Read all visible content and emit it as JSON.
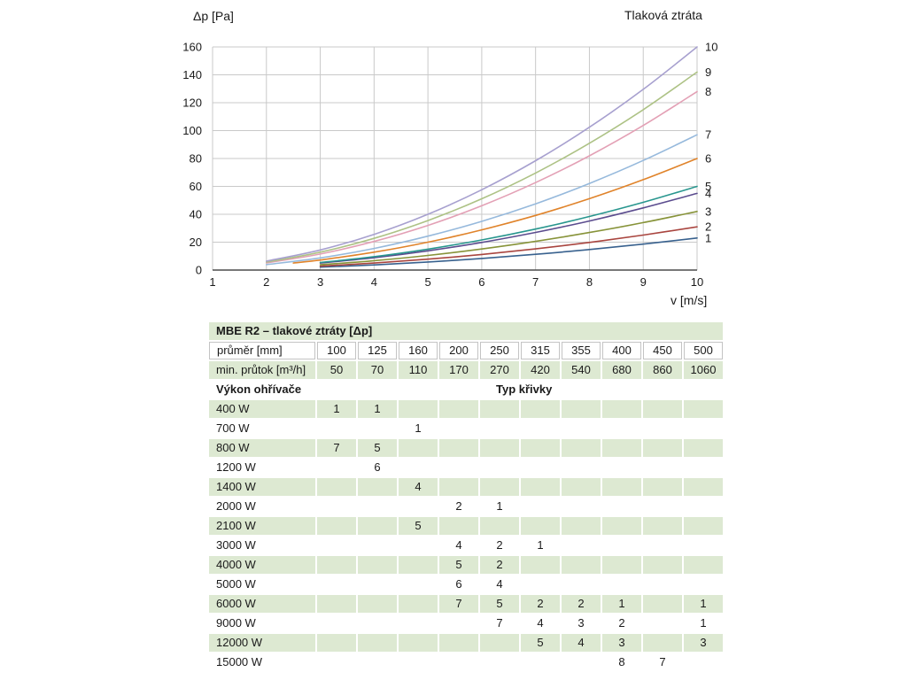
{
  "chart_data": {
    "type": "line",
    "title": "Tlaková ztráta",
    "xlabel": "v [m/s]",
    "ylabel": "Δp [Pa]",
    "xlim": [
      1,
      10
    ],
    "ylim": [
      0,
      160
    ],
    "xticks": [
      1,
      2,
      3,
      4,
      5,
      6,
      7,
      8,
      9,
      10
    ],
    "yticks": [
      0,
      20,
      40,
      60,
      80,
      100,
      120,
      140,
      160
    ],
    "grid": true,
    "legend_position": "right-end-labels",
    "series": [
      {
        "name": "1",
        "color": "#38618e",
        "x": [
          3,
          4,
          5,
          6,
          7,
          8,
          9,
          10
        ],
        "y": [
          2.1,
          3.7,
          5.8,
          8.3,
          11.3,
          14.7,
          18.6,
          23
        ]
      },
      {
        "name": "2",
        "color": "#a9453f",
        "x": [
          3,
          4,
          5,
          6,
          7,
          8,
          9,
          10
        ],
        "y": [
          2.8,
          5.0,
          7.8,
          11.2,
          15.2,
          19.8,
          25.1,
          31
        ]
      },
      {
        "name": "3",
        "color": "#879339",
        "x": [
          3,
          4,
          5,
          6,
          7,
          8,
          9,
          10
        ],
        "y": [
          3.8,
          6.7,
          10.5,
          15.1,
          20.6,
          26.9,
          34.0,
          42
        ]
      },
      {
        "name": "4",
        "color": "#5b4c8e",
        "x": [
          3,
          4,
          5,
          6,
          7,
          8,
          9,
          10
        ],
        "y": [
          5.0,
          8.8,
          13.8,
          19.8,
          27.0,
          35.2,
          44.6,
          55
        ]
      },
      {
        "name": "5",
        "color": "#28968e",
        "x": [
          3,
          4,
          5,
          6,
          7,
          8,
          9,
          10
        ],
        "y": [
          5.4,
          9.6,
          15.0,
          21.6,
          29.4,
          38.4,
          48.6,
          60
        ]
      },
      {
        "name": "6",
        "color": "#e0832a",
        "x": [
          2.5,
          3,
          4,
          5,
          6,
          7,
          8,
          9,
          10
        ],
        "y": [
          5.0,
          7.2,
          12.8,
          20.0,
          28.8,
          39.2,
          51.2,
          64.8,
          80
        ]
      },
      {
        "name": "7",
        "color": "#96b9dc",
        "x": [
          2,
          3,
          4,
          5,
          6,
          7,
          8,
          9,
          10
        ],
        "y": [
          3.9,
          8.7,
          15.5,
          24.3,
          34.9,
          47.5,
          62.1,
          78.6,
          97
        ]
      },
      {
        "name": "8",
        "color": "#e3a0b5",
        "x": [
          2,
          3,
          4,
          5,
          6,
          7,
          8,
          9,
          10
        ],
        "y": [
          5.1,
          11.5,
          20.5,
          32.0,
          46.1,
          62.7,
          81.9,
          103.7,
          128
        ]
      },
      {
        "name": "9",
        "color": "#adc285",
        "x": [
          2,
          3,
          4,
          5,
          6,
          7,
          8,
          9,
          10
        ],
        "y": [
          5.7,
          12.8,
          22.7,
          35.5,
          51.1,
          69.6,
          90.9,
          115.0,
          142
        ]
      },
      {
        "name": "10",
        "color": "#a7a0cf",
        "x": [
          2,
          3,
          4,
          5,
          6,
          7,
          8,
          9,
          10
        ],
        "y": [
          6.4,
          14.4,
          25.6,
          40.0,
          57.6,
          78.4,
          102.4,
          129.6,
          160
        ]
      }
    ]
  },
  "table": {
    "title": "MBE R2 – tlakové ztráty [Δp]",
    "diameter_label": "průměr [mm]",
    "diameters": [
      "100",
      "125",
      "160",
      "200",
      "250",
      "315",
      "355",
      "400",
      "450",
      "500"
    ],
    "flow_label": "min. průtok [m³/h]",
    "flows": [
      "50",
      "70",
      "110",
      "170",
      "270",
      "420",
      "540",
      "680",
      "860",
      "1060"
    ],
    "power_header": "Výkon ohřívače",
    "curve_header": "Typ křivky",
    "rows": [
      {
        "power": "400 W",
        "values": [
          "1",
          "1",
          "",
          "",
          "",
          "",
          "",
          "",
          "",
          ""
        ]
      },
      {
        "power": "700 W",
        "values": [
          "",
          "",
          "1",
          "",
          "",
          "",
          "",
          "",
          "",
          ""
        ]
      },
      {
        "power": "800 W",
        "values": [
          "7",
          "5",
          "",
          "",
          "",
          "",
          "",
          "",
          "",
          ""
        ]
      },
      {
        "power": "1200 W",
        "values": [
          "",
          "6",
          "",
          "",
          "",
          "",
          "",
          "",
          "",
          ""
        ]
      },
      {
        "power": "1400 W",
        "values": [
          "",
          "",
          "4",
          "",
          "",
          "",
          "",
          "",
          "",
          ""
        ]
      },
      {
        "power": "2000 W",
        "values": [
          "",
          "",
          "",
          "2",
          "1",
          "",
          "",
          "",
          "",
          ""
        ]
      },
      {
        "power": "2100 W",
        "values": [
          "",
          "",
          "5",
          "",
          "",
          "",
          "",
          "",
          "",
          ""
        ]
      },
      {
        "power": "3000 W",
        "values": [
          "",
          "",
          "",
          "4",
          "2",
          "1",
          "",
          "",
          "",
          ""
        ]
      },
      {
        "power": "4000 W",
        "values": [
          "",
          "",
          "",
          "5",
          "2",
          "",
          "",
          "",
          "",
          ""
        ]
      },
      {
        "power": "5000 W",
        "values": [
          "",
          "",
          "",
          "6",
          "4",
          "",
          "",
          "",
          "",
          ""
        ]
      },
      {
        "power": "6000 W",
        "values": [
          "",
          "",
          "",
          "7",
          "5",
          "2",
          "2",
          "1",
          "",
          "1"
        ]
      },
      {
        "power": "9000 W",
        "values": [
          "",
          "",
          "",
          "",
          "7",
          "4",
          "3",
          "2",
          "",
          "1"
        ]
      },
      {
        "power": "12000  W",
        "values": [
          "",
          "",
          "",
          "",
          "",
          "5",
          "4",
          "3",
          "",
          "3"
        ]
      },
      {
        "power": "15000 W",
        "values": [
          "",
          "",
          "",
          "",
          "",
          "",
          "",
          "8",
          "7",
          ""
        ]
      }
    ]
  },
  "colors": {
    "row_green": "#dde9d2",
    "grid": "#c9c9c9",
    "axis": "#4c4c4c"
  }
}
